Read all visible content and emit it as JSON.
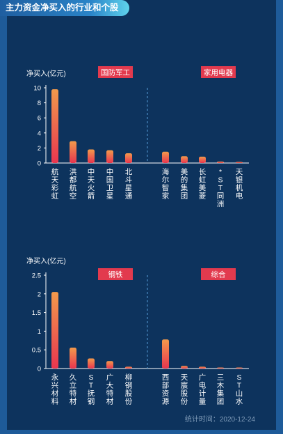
{
  "header": {
    "title": "主力资金净买入的行业和个股"
  },
  "footer": {
    "stat_time": "统计时间：2020-12-24"
  },
  "colors": {
    "background": "#0d335d",
    "frame": "#1e5b99",
    "bar_top": "#f29a4c",
    "bar_bottom": "#e8364f",
    "tag_bg": "#e23a4e",
    "axis": "#ffffff",
    "divider": "#4a8cc4"
  },
  "chart_data": [
    {
      "type": "bar",
      "ylabel": "净买入(亿元)",
      "ylim": [
        0,
        10
      ],
      "yticks": [
        0,
        2,
        4,
        6,
        8,
        10
      ],
      "groups": [
        {
          "name": "国防军工",
          "categories": [
            "航天彩虹",
            "洪都航空",
            "中天火箭",
            "中国卫星",
            "北斗星通"
          ],
          "values": [
            9.8,
            2.9,
            1.8,
            1.7,
            1.3
          ]
        },
        {
          "name": "家用电器",
          "categories": [
            "海尔智家",
            "美的集团",
            "长虹美菱",
            "*ST同洲",
            "天银机电"
          ],
          "values": [
            1.5,
            0.9,
            0.85,
            0.2,
            0.15
          ]
        }
      ]
    },
    {
      "type": "bar",
      "ylabel": "净买入(亿元)",
      "ylim": [
        0,
        2.5
      ],
      "yticks": [
        0,
        0.5,
        1,
        1.5,
        2,
        2.5
      ],
      "groups": [
        {
          "name": "钢铁",
          "categories": [
            "永兴材料",
            "久立特材",
            "ST抚钢",
            "广大特材",
            "柳钢股份"
          ],
          "values": [
            2.05,
            0.56,
            0.27,
            0.2,
            0.05
          ]
        },
        {
          "name": "综合",
          "categories": [
            "西部资源",
            "天宸股份",
            "广电计量",
            "三木集团",
            "ST山水"
          ],
          "values": [
            0.78,
            0.07,
            0.05,
            0.02,
            0.005
          ]
        }
      ]
    }
  ]
}
